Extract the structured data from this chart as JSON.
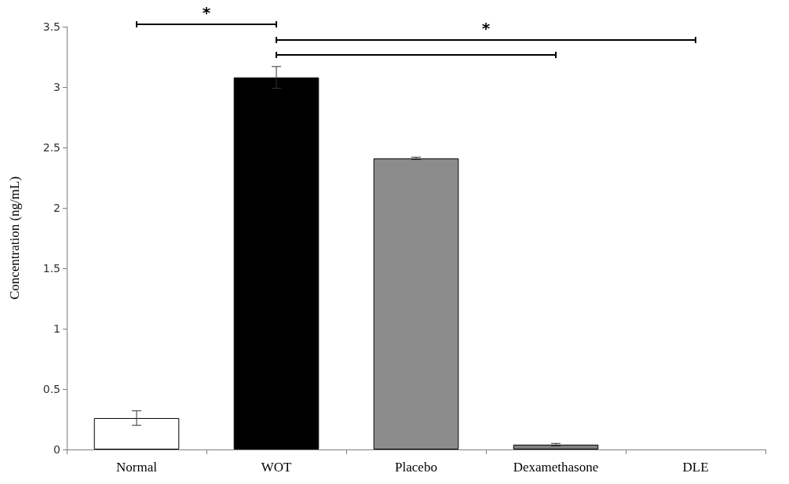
{
  "chart_data": {
    "type": "bar",
    "ylabel": "Concentration (ng/mL)",
    "categories": [
      "Normal",
      "WOT",
      "Placebo",
      "Dexamethasone",
      "DLE"
    ],
    "values": [
      0.26,
      3.08,
      2.41,
      0.04,
      0
    ],
    "errors": [
      0.06,
      0.09,
      0.01,
      0.01,
      null
    ],
    "colors": [
      "#ffffff",
      "#000000",
      "#8c8c8c",
      "#808080",
      "#ffffff"
    ],
    "ylim": [
      0,
      3.5
    ],
    "yticks": [
      0,
      0.5,
      1,
      1.5,
      2,
      2.5,
      3,
      3.5
    ],
    "annotations": [
      "*",
      "*"
    ]
  }
}
